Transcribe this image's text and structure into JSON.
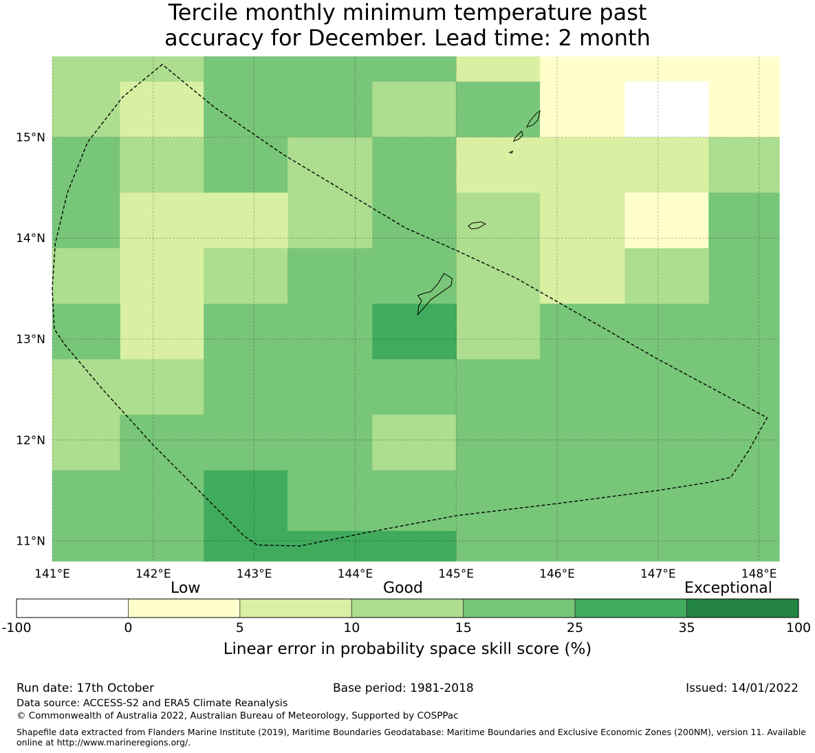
{
  "title": "Tercile monthly minimum temperature past\naccuracy for December. Lead time: 2 month",
  "map": {
    "lon_range": [
      141.0,
      148.2
    ],
    "lat_range": [
      10.8,
      15.8
    ],
    "lon_ticks": [
      141,
      142,
      143,
      144,
      145,
      146,
      147,
      148
    ],
    "lat_ticks": [
      15,
      14,
      13,
      12,
      11
    ],
    "lon_labels": [
      "141°E",
      "142°E",
      "143°E",
      "144°E",
      "145°E",
      "146°E",
      "147°E",
      "148°E"
    ],
    "lat_labels": [
      "15°N",
      "14°N",
      "13°N",
      "12°N",
      "11°N"
    ],
    "category_colors": [
      "#ffffff",
      "#ffffcc",
      "#d9f0a3",
      "#addd8e",
      "#78c679",
      "#41ab5d",
      "#238443"
    ],
    "grid_cells": [
      {
        "lon": [
          141.0,
          142.5
        ],
        "lat": [
          15.5,
          15.8
        ],
        "cat": 3
      },
      {
        "lon": [
          141.0,
          141.67
        ],
        "lat": [
          15.0,
          15.55
        ],
        "cat": 3
      },
      {
        "lon": [
          141.67,
          142.5
        ],
        "lat": [
          15.0,
          15.55
        ],
        "cat": 2
      },
      {
        "lon": [
          142.5,
          145.0
        ],
        "lat": [
          15.55,
          15.8
        ],
        "cat": 4
      },
      {
        "lon": [
          142.5,
          144.17
        ],
        "lat": [
          15.0,
          15.55
        ],
        "cat": 4
      },
      {
        "lon": [
          144.17,
          145.0
        ],
        "lat": [
          15.0,
          15.55
        ],
        "cat": 3
      },
      {
        "lon": [
          145.0,
          145.83
        ],
        "lat": [
          15.55,
          15.8
        ],
        "cat": 2
      },
      {
        "lon": [
          145.0,
          145.83
        ],
        "lat": [
          15.0,
          15.55
        ],
        "cat": 4
      },
      {
        "lon": [
          145.83,
          148.2
        ],
        "lat": [
          15.55,
          15.8
        ],
        "cat": 1
      },
      {
        "lon": [
          145.83,
          146.67
        ],
        "lat": [
          15.0,
          15.55
        ],
        "cat": 1
      },
      {
        "lon": [
          146.67,
          147.5
        ],
        "lat": [
          15.0,
          15.55
        ],
        "cat": 0
      },
      {
        "lon": [
          147.5,
          148.2
        ],
        "lat": [
          15.0,
          15.55
        ],
        "cat": 1
      },
      {
        "lon": [
          141.0,
          141.67
        ],
        "lat": [
          13.9,
          15.0
        ],
        "cat": 4
      },
      {
        "lon": [
          141.67,
          142.5
        ],
        "lat": [
          14.45,
          15.0
        ],
        "cat": 3
      },
      {
        "lon": [
          142.5,
          143.33
        ],
        "lat": [
          14.45,
          15.0
        ],
        "cat": 4
      },
      {
        "lon": [
          143.33,
          144.17
        ],
        "lat": [
          13.9,
          15.0
        ],
        "cat": 3
      },
      {
        "lon": [
          144.17,
          145.0
        ],
        "lat": [
          13.35,
          15.0
        ],
        "cat": 4
      },
      {
        "lon": [
          145.0,
          147.5
        ],
        "lat": [
          14.45,
          15.0
        ],
        "cat": 2
      },
      {
        "lon": [
          147.5,
          148.2
        ],
        "lat": [
          14.45,
          15.0
        ],
        "cat": 3
      },
      {
        "lon": [
          141.67,
          143.33
        ],
        "lat": [
          13.9,
          14.45
        ],
        "cat": 2
      },
      {
        "lon": [
          145.0,
          145.83
        ],
        "lat": [
          12.8,
          14.45
        ],
        "cat": 3
      },
      {
        "lon": [
          145.83,
          146.67
        ],
        "lat": [
          13.35,
          14.45
        ],
        "cat": 2
      },
      {
        "lon": [
          146.67,
          147.5
        ],
        "lat": [
          13.9,
          14.45
        ],
        "cat": 1
      },
      {
        "lon": [
          147.5,
          148.2
        ],
        "lat": [
          13.35,
          14.45
        ],
        "cat": 4
      },
      {
        "lon": [
          141.0,
          141.67
        ],
        "lat": [
          13.35,
          13.9
        ],
        "cat": 3
      },
      {
        "lon": [
          141.67,
          142.5
        ],
        "lat": [
          12.8,
          13.9
        ],
        "cat": 2
      },
      {
        "lon": [
          142.5,
          143.33
        ],
        "lat": [
          13.35,
          13.9
        ],
        "cat": 3
      },
      {
        "lon": [
          143.33,
          144.17
        ],
        "lat": [
          13.35,
          13.9
        ],
        "cat": 4
      },
      {
        "lon": [
          146.67,
          147.5
        ],
        "lat": [
          13.35,
          13.9
        ],
        "cat": 3
      },
      {
        "lon": [
          141.0,
          141.67
        ],
        "lat": [
          12.8,
          13.35
        ],
        "cat": 4
      },
      {
        "lon": [
          142.5,
          144.17
        ],
        "lat": [
          12.8,
          13.35
        ],
        "cat": 4
      },
      {
        "lon": [
          144.17,
          145.0
        ],
        "lat": [
          12.8,
          13.35
        ],
        "cat": 5
      },
      {
        "lon": [
          145.83,
          148.2
        ],
        "lat": [
          12.8,
          13.35
        ],
        "cat": 4
      },
      {
        "lon": [
          141.0,
          142.5
        ],
        "lat": [
          12.25,
          12.8
        ],
        "cat": 3
      },
      {
        "lon": [
          142.5,
          148.2
        ],
        "lat": [
          12.25,
          12.8
        ],
        "cat": 4
      },
      {
        "lon": [
          141.0,
          141.67
        ],
        "lat": [
          11.7,
          12.25
        ],
        "cat": 3
      },
      {
        "lon": [
          141.67,
          144.17
        ],
        "lat": [
          11.7,
          12.25
        ],
        "cat": 4
      },
      {
        "lon": [
          144.17,
          145.0
        ],
        "lat": [
          11.7,
          12.25
        ],
        "cat": 3
      },
      {
        "lon": [
          145.0,
          148.2
        ],
        "lat": [
          11.7,
          12.25
        ],
        "cat": 4
      },
      {
        "lon": [
          141.0,
          142.5
        ],
        "lat": [
          10.8,
          11.7
        ],
        "cat": 4
      },
      {
        "lon": [
          142.5,
          143.33
        ],
        "lat": [
          10.8,
          11.7
        ],
        "cat": 5
      },
      {
        "lon": [
          143.33,
          145.0
        ],
        "lat": [
          11.1,
          11.7
        ],
        "cat": 4
      },
      {
        "lon": [
          143.33,
          145.0
        ],
        "lat": [
          10.8,
          11.1
        ],
        "cat": 5
      },
      {
        "lon": [
          145.0,
          148.2
        ],
        "lat": [
          10.8,
          11.7
        ],
        "cat": 4
      }
    ],
    "eez_boundary": [
      [
        142.09,
        15.72
      ],
      [
        141.7,
        15.4
      ],
      [
        141.35,
        14.95
      ],
      [
        141.15,
        14.45
      ],
      [
        141.03,
        13.95
      ],
      [
        141.0,
        13.5
      ],
      [
        141.02,
        13.1
      ],
      [
        141.12,
        12.95
      ],
      [
        141.5,
        12.5
      ],
      [
        142.0,
        11.95
      ],
      [
        142.5,
        11.45
      ],
      [
        142.9,
        11.05
      ],
      [
        143.03,
        10.96
      ],
      [
        143.45,
        10.95
      ],
      [
        144.2,
        11.1
      ],
      [
        145.0,
        11.25
      ],
      [
        146.0,
        11.37
      ],
      [
        147.0,
        11.5
      ],
      [
        147.5,
        11.58
      ],
      [
        147.72,
        11.63
      ],
      [
        147.9,
        11.9
      ],
      [
        148.08,
        12.22
      ],
      [
        147.0,
        12.8
      ],
      [
        146.3,
        13.2
      ],
      [
        145.6,
        13.6
      ],
      [
        145.0,
        13.88
      ],
      [
        144.5,
        14.1
      ],
      [
        143.95,
        14.43
      ],
      [
        143.3,
        14.82
      ],
      [
        142.6,
        15.3
      ],
      [
        142.09,
        15.72
      ]
    ],
    "islands": [
      [
        [
          144.62,
          13.24
        ],
        [
          144.75,
          13.39
        ],
        [
          144.95,
          13.53
        ],
        [
          144.96,
          13.6
        ],
        [
          144.88,
          13.65
        ],
        [
          144.82,
          13.55
        ],
        [
          144.75,
          13.47
        ],
        [
          144.67,
          13.45
        ],
        [
          144.62,
          13.43
        ],
        [
          144.66,
          13.38
        ],
        [
          144.63,
          13.33
        ],
        [
          144.62,
          13.24
        ]
      ],
      [
        [
          145.12,
          14.12
        ],
        [
          145.16,
          14.15
        ],
        [
          145.25,
          14.16
        ],
        [
          145.29,
          14.14
        ],
        [
          145.22,
          14.1
        ],
        [
          145.15,
          14.09
        ],
        [
          145.12,
          14.12
        ]
      ],
      [
        [
          145.57,
          14.96
        ],
        [
          145.59,
          15.0
        ],
        [
          145.65,
          15.06
        ],
        [
          145.66,
          15.02
        ],
        [
          145.62,
          14.98
        ],
        [
          145.57,
          14.96
        ]
      ],
      [
        [
          145.7,
          15.1
        ],
        [
          145.73,
          15.16
        ],
        [
          145.8,
          15.24
        ],
        [
          145.83,
          15.26
        ],
        [
          145.81,
          15.17
        ],
        [
          145.76,
          15.12
        ],
        [
          145.7,
          15.1
        ]
      ],
      [
        [
          145.53,
          14.85
        ],
        [
          145.56,
          14.86
        ],
        [
          145.55,
          14.84
        ],
        [
          145.53,
          14.85
        ]
      ]
    ]
  },
  "colorbar": {
    "colors": [
      "#ffffff",
      "#ffffcc",
      "#d9f0a3",
      "#addd8e",
      "#78c679",
      "#41ab5d",
      "#238443"
    ],
    "ticks": [
      "-100",
      "0",
      "5",
      "10",
      "15",
      "25",
      "35",
      "100"
    ],
    "category_labels": {
      "low": "Low",
      "good": "Good",
      "exceptional": "Exceptional"
    },
    "title": "Linear error in probability space skill score (%)"
  },
  "footer": {
    "run_date": "Run date: 17th October",
    "base_period": "Base period: 1981-2018",
    "issued": "Issued: 14/01/2022",
    "data_source": "Data source: ACCESS-S2 and ERA5 Climate Reanalysis",
    "copyright": "© Commonwealth of Australia 2022, Australian Bureau of Meteorology, Supported by COSPPac",
    "shapefile": "Shapefile data extracted from Flanders Marine Institute (2019), Maritime Boundaries Geodatabase: Maritime Boundaries and Exclusive Economic Zones (200NM), version 11. Available online at http://www.marineregions.org/."
  }
}
